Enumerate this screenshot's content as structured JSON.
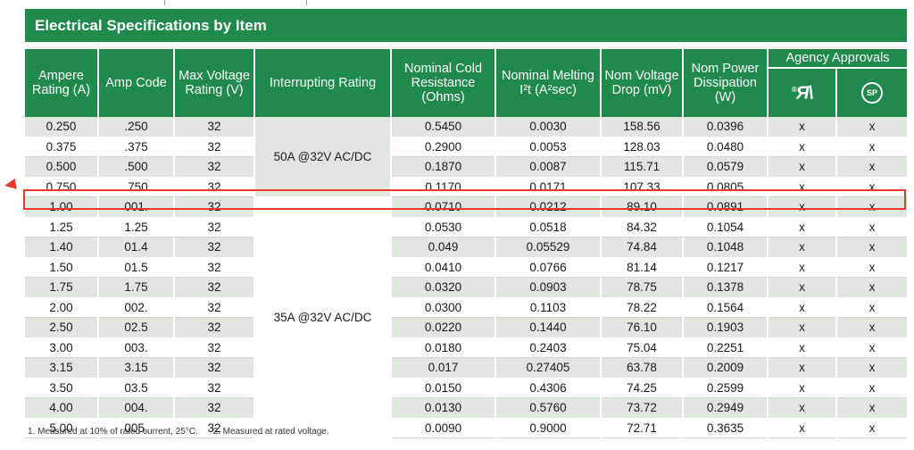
{
  "title": "Electrical Specifications by Item",
  "headers": {
    "ampere": "Ampere Rating (A)",
    "amp_code": "Amp Code",
    "max_voltage": "Max Voltage Rating (V)",
    "interrupting": "Interrupting Rating",
    "resistance": "Nominal Cold Resistance (Ohms)",
    "melting": "Nominal Melting I²t (A²sec)",
    "voltage_drop": "Nom Voltage Drop (mV)",
    "power": "Nom Power Dissipation (W)",
    "agency": "Agency Approvals"
  },
  "agency_icons": {
    "ul": "ul-recognized-icon",
    "csa": "csa-icon"
  },
  "interrupting_ratings": {
    "group1": "50A @32V AC/DC",
    "group2": "35A @32V AC/DC"
  },
  "rows": [
    {
      "ampere": "0.250",
      "code": ".250",
      "voltage": "32",
      "resistance": "0.5450",
      "melting": "0.0030",
      "drop": "158.56",
      "power": "0.0396",
      "ul": "x",
      "csa": "x"
    },
    {
      "ampere": "0.375",
      "code": ".375",
      "voltage": "32",
      "resistance": "0.2900",
      "melting": "0.0053",
      "drop": "128.03",
      "power": "0.0480",
      "ul": "x",
      "csa": "x"
    },
    {
      "ampere": "0.500",
      "code": ".500",
      "voltage": "32",
      "resistance": "0.1870",
      "melting": "0.0087",
      "drop": "115.71",
      "power": "0.0579",
      "ul": "x",
      "csa": "x"
    },
    {
      "ampere": "0.750",
      "code": ".750",
      "voltage": "32",
      "resistance": "0.1170",
      "melting": "0.0171",
      "drop": "107.33",
      "power": "0.0805",
      "ul": "x",
      "csa": "x"
    },
    {
      "ampere": "1.00",
      "code": "001.",
      "voltage": "32",
      "resistance": "0.0710",
      "melting": "0.0212",
      "drop": "89.10",
      "power": "0.0891",
      "ul": "x",
      "csa": "x"
    },
    {
      "ampere": "1.25",
      "code": "1.25",
      "voltage": "32",
      "resistance": "0.0530",
      "melting": "0.0518",
      "drop": "84.32",
      "power": "0.1054",
      "ul": "x",
      "csa": "x"
    },
    {
      "ampere": "1.40",
      "code": "01.4",
      "voltage": "32",
      "resistance": "0.049",
      "melting": "0.05529",
      "drop": "74.84",
      "power": "0.1048",
      "ul": "x",
      "csa": "x"
    },
    {
      "ampere": "1.50",
      "code": "01.5",
      "voltage": "32",
      "resistance": "0.0410",
      "melting": "0.0766",
      "drop": "81.14",
      "power": "0.1217",
      "ul": "x",
      "csa": "x"
    },
    {
      "ampere": "1.75",
      "code": "1.75",
      "voltage": "32",
      "resistance": "0.0320",
      "melting": "0.0903",
      "drop": "78.75",
      "power": "0.1378",
      "ul": "x",
      "csa": "x"
    },
    {
      "ampere": "2.00",
      "code": "002.",
      "voltage": "32",
      "resistance": "0.0300",
      "melting": "0.1103",
      "drop": "78.22",
      "power": "0.1564",
      "ul": "x",
      "csa": "x"
    },
    {
      "ampere": "2.50",
      "code": "02.5",
      "voltage": "32",
      "resistance": "0.0220",
      "melting": "0.1440",
      "drop": "76.10",
      "power": "0.1903",
      "ul": "x",
      "csa": "x"
    },
    {
      "ampere": "3.00",
      "code": "003.",
      "voltage": "32",
      "resistance": "0.0180",
      "melting": "0.2403",
      "drop": "75.04",
      "power": "0.2251",
      "ul": "x",
      "csa": "x"
    },
    {
      "ampere": "3.15",
      "code": "3.15",
      "voltage": "32",
      "resistance": "0.017",
      "melting": "0.27405",
      "drop": "63.78",
      "power": "0.2009",
      "ul": "x",
      "csa": "x"
    },
    {
      "ampere": "3.50",
      "code": "03.5",
      "voltage": "32",
      "resistance": "0.0150",
      "melting": "0.4306",
      "drop": "74.25",
      "power": "0.2599",
      "ul": "x",
      "csa": "x"
    },
    {
      "ampere": "4.00",
      "code": "004.",
      "voltage": "32",
      "resistance": "0.0130",
      "melting": "0.5760",
      "drop": "73.72",
      "power": "0.2949",
      "ul": "x",
      "csa": "x"
    },
    {
      "ampere": "5.00",
      "code": "005.",
      "voltage": "32",
      "resistance": "0.0090",
      "melting": "0.9000",
      "drop": "72.71",
      "power": "0.3635",
      "ul": "x",
      "csa": "x"
    }
  ],
  "highlighted_row": "1.00",
  "footnotes": [
    "1.  Measured at 10% of rated current, 25°C.",
    "2. Measured at rated voltage."
  ],
  "colors": {
    "header_green": "#1f8a4c",
    "row_shade": "#dfe7df",
    "highlight_red": "#e53a2f"
  }
}
